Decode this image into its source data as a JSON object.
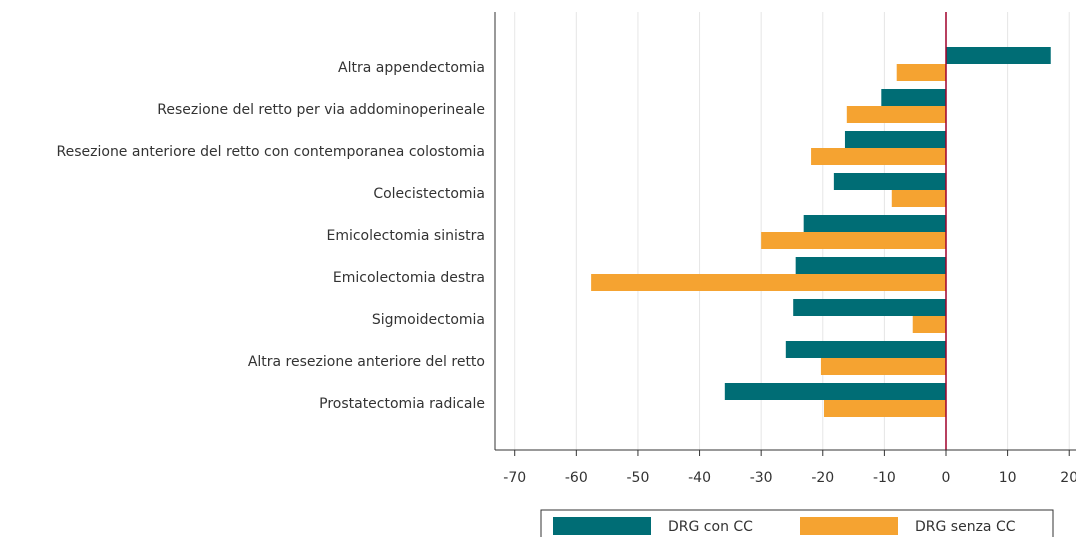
{
  "chart_data": {
    "type": "barh",
    "categories": [
      "Altra appendectomia",
      "Resezione del retto per via addominoperineale",
      "Resezione anteriore del retto con contemporanea colostomia",
      "Colecistectomia",
      "Emicolectomia sinistra",
      "Emicolectomia destra",
      "Sigmoidectomia",
      "Altra resezione anteriore del retto",
      "Prostatectomia radicale"
    ],
    "series": [
      {
        "name": "DRG con CC",
        "color": "#006d75",
        "values": [
          17.0,
          -10.5,
          -16.4,
          -18.2,
          -23.1,
          -24.4,
          -24.8,
          -26.0,
          -35.9
        ]
      },
      {
        "name": "DRG senza CC",
        "color": "#f5a331",
        "values": [
          -8.0,
          -16.1,
          -21.9,
          -8.8,
          -30.0,
          -57.6,
          -5.4,
          -20.3,
          -19.8
        ]
      }
    ],
    "xlim": [
      -73.2,
      21.1
    ],
    "xticks": [
      -70,
      -60,
      -50,
      -40,
      -30,
      -20,
      -10,
      0,
      10,
      20
    ],
    "grid": true,
    "legend": "bottom"
  }
}
